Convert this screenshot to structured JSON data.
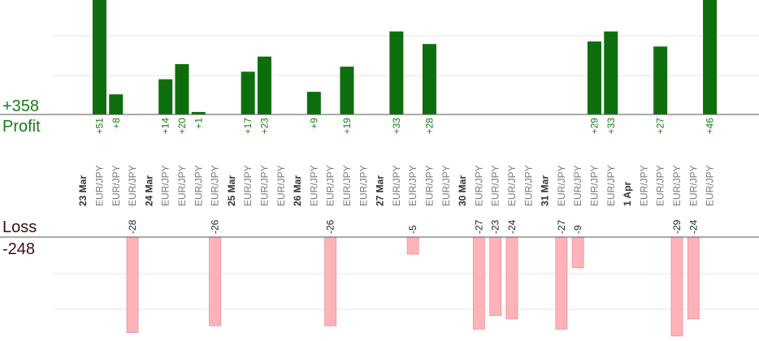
{
  "summary": {
    "profit_total": "+358",
    "profit_label": "Profit",
    "loss_label": "Loss",
    "loss_total": "-248"
  },
  "colors": {
    "profit_bar": "#0e6e0e",
    "loss_bar": "#ffb3b8",
    "profit_text": "#1a7a1a",
    "loss_text": "#3a1010",
    "date_text": "#333333",
    "symbol_text": "#7a7a7a"
  },
  "chart_data": {
    "type": "bar",
    "title": "",
    "xlabel": "",
    "ylabel": "",
    "grid": true,
    "columns": [
      {
        "date": "23 Mar"
      },
      {
        "symbol": "EUR/JPY",
        "profit": 51
      },
      {
        "symbol": "EUR/JPY",
        "profit": 8
      },
      {
        "symbol": "EUR/JPY",
        "loss": -28
      },
      {
        "date": "24 Mar"
      },
      {
        "symbol": "EUR/JPY",
        "profit": 14
      },
      {
        "symbol": "EUR/JPY",
        "profit": 20
      },
      {
        "symbol": "EUR/JPY",
        "profit": 1
      },
      {
        "symbol": "EUR/JPY",
        "loss": -26
      },
      {
        "date": "25 Mar"
      },
      {
        "symbol": "EUR/JPY",
        "profit": 17
      },
      {
        "symbol": "EUR/JPY",
        "profit": 23
      },
      {
        "symbol": "EUR/JPY"
      },
      {
        "date": "26 Mar"
      },
      {
        "symbol": "EUR/JPY",
        "profit": 9
      },
      {
        "symbol": "EUR/JPY",
        "loss": -26
      },
      {
        "symbol": "EUR/JPY",
        "profit": 19
      },
      {
        "symbol": "EUR/JPY"
      },
      {
        "date": "27 Mar"
      },
      {
        "symbol": "EUR/JPY",
        "profit": 33
      },
      {
        "symbol": "EUR/JPY",
        "loss": -5
      },
      {
        "symbol": "EUR/JPY",
        "profit": 28
      },
      {
        "symbol": "EUR/JPY"
      },
      {
        "date": "30 Mar"
      },
      {
        "symbol": "EUR/JPY",
        "loss": -27
      },
      {
        "symbol": "EUR/JPY",
        "loss": -23
      },
      {
        "symbol": "EUR/JPY",
        "loss": -24
      },
      {
        "symbol": "EUR/JPY"
      },
      {
        "date": "31 Mar"
      },
      {
        "symbol": "EUR/JPY",
        "loss": -27
      },
      {
        "symbol": "EUR/JPY",
        "loss": -9
      },
      {
        "symbol": "EUR/JPY",
        "profit": 29
      },
      {
        "symbol": "EUR/JPY",
        "profit": 33
      },
      {
        "date": "1 Apr"
      },
      {
        "symbol": "EUR/JPY"
      },
      {
        "symbol": "EUR/JPY",
        "profit": 27
      },
      {
        "symbol": "EUR/JPY",
        "loss": -29
      },
      {
        "symbol": "EUR/JPY",
        "loss": -24
      },
      {
        "symbol": "EUR/JPY",
        "profit": 46
      }
    ]
  }
}
